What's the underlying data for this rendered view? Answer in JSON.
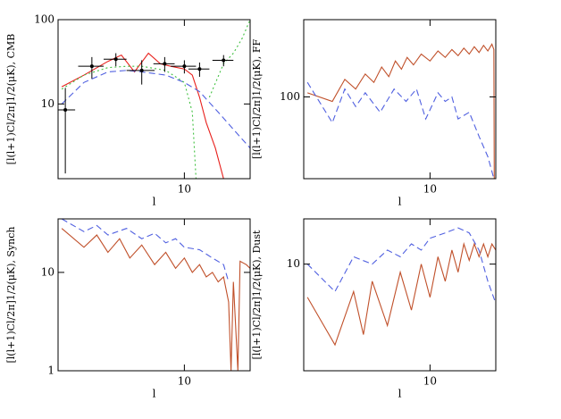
{
  "chart_data": [
    {
      "type": "line",
      "xlabel": "l",
      "ylabel": "[l(l+1)Cl/2π]1/2(μK), CMB",
      "xscale": "log",
      "yscale": "log",
      "xlim": [
        2.2,
        22
      ],
      "ylim": [
        1.3,
        100
      ],
      "xticks": [
        10
      ],
      "yticks": [
        10,
        100
      ],
      "series": [
        {
          "color": "#e8201c",
          "style": "solid",
          "x": [
            2.3,
            3,
            4,
            4.7,
            5.5,
            6.5,
            7.5,
            8.5,
            10,
            11,
            12,
            13,
            14.5,
            16
          ],
          "values": [
            16,
            22,
            32,
            38,
            24,
            40,
            30,
            28,
            26,
            22,
            12,
            6,
            3,
            1.3
          ]
        },
        {
          "color": "#5060e0",
          "style": "dashed",
          "x": [
            2.3,
            3,
            4,
            5,
            6,
            8,
            10,
            12,
            15,
            18,
            22
          ],
          "values": [
            10,
            18,
            24,
            25,
            24,
            22,
            18,
            14,
            8,
            5,
            3
          ]
        },
        {
          "color": "#40c040",
          "style": "dotted",
          "x": [
            2.3,
            3,
            4,
            5,
            6,
            8,
            10,
            11,
            11.5,
            12.5,
            13.5,
            16,
            18,
            20,
            22
          ],
          "values": [
            15,
            22,
            27,
            28,
            28,
            25,
            18,
            8,
            1.3,
            null,
            12,
            30,
            40,
            60,
            100
          ]
        }
      ],
      "points": {
        "color": "#000",
        "x": [
          2.4,
          3.3,
          4.4,
          6,
          7.9,
          10,
          12,
          16
        ],
        "values": [
          8.5,
          28,
          34,
          25,
          30,
          28,
          26,
          33
        ],
        "yerr": [
          7,
          8,
          6,
          8,
          6,
          5,
          5,
          5
        ],
        "xerr": [
          0.3,
          0.5,
          0.6,
          1,
          1,
          1.5,
          1.5,
          2
        ]
      }
    },
    {
      "type": "line",
      "xlabel": "l",
      "ylabel": "[l(l+1)Cl/2π]1/2(μK), FF",
      "xscale": "log",
      "yscale": "log",
      "xlim": [
        2.2,
        22
      ],
      "ylim": [
        15,
        600
      ],
      "xticks": [
        10
      ],
      "yticks": [
        100
      ],
      "series": [
        {
          "color": "#c0502a",
          "style": "solid",
          "x": [
            2.3,
            3.1,
            3.6,
            4.1,
            4.6,
            5.1,
            5.6,
            6.1,
            6.6,
            7.1,
            7.6,
            8.2,
            9,
            10,
            11,
            12,
            13,
            14,
            15,
            16,
            17,
            18,
            19,
            20,
            21,
            21.5,
            21.6
          ],
          "values": [
            110,
            90,
            150,
            120,
            170,
            140,
            200,
            160,
            230,
            190,
            250,
            210,
            270,
            230,
            290,
            250,
            300,
            260,
            310,
            270,
            320,
            280,
            330,
            290,
            340,
            300,
            15
          ]
        },
        {
          "color": "#5060e0",
          "style": "dashed",
          "x": [
            2.3,
            3.1,
            3.6,
            4.1,
            4.6,
            5.5,
            6.5,
            7.5,
            8.5,
            9.5,
            11,
            12,
            13,
            14,
            16,
            18,
            20,
            21.5
          ],
          "values": [
            140,
            55,
            120,
            80,
            110,
            70,
            120,
            90,
            120,
            60,
            110,
            90,
            100,
            60,
            70,
            40,
            25,
            15
          ]
        }
      ]
    },
    {
      "type": "line",
      "xlabel": "l",
      "ylabel": "[l(l+1)Cl/2π]1/2(μK), Synch",
      "xscale": "log",
      "yscale": "log",
      "xlim": [
        2.2,
        22
      ],
      "ylim": [
        1,
        35
      ],
      "xticks": [
        10
      ],
      "yticks": [
        1,
        10
      ],
      "series": [
        {
          "color": "#c0502a",
          "style": "solid",
          "x": [
            2.3,
            3,
            3.5,
            4,
            4.6,
            5.2,
            6,
            7,
            8,
            9,
            10,
            11,
            12,
            13,
            14,
            15,
            16,
            17,
            17.5,
            18,
            19,
            19.5,
            21,
            22
          ],
          "values": [
            28,
            18,
            24,
            16,
            22,
            14,
            19,
            12,
            16,
            11,
            14,
            10,
            12,
            9,
            10,
            8,
            9,
            5,
            1,
            8,
            1,
            13,
            12,
            11
          ]
        },
        {
          "color": "#5060e0",
          "style": "dashed",
          "x": [
            2.3,
            3,
            3.5,
            4,
            5,
            6,
            7,
            8,
            9,
            10,
            12,
            14,
            16,
            17
          ],
          "values": [
            35,
            26,
            30,
            24,
            28,
            22,
            25,
            20,
            22,
            18,
            17,
            14,
            12,
            8
          ]
        }
      ]
    },
    {
      "type": "line",
      "xlabel": "l",
      "ylabel": "[l(l+1)Cl/2π]1/2(μK), Dust",
      "xscale": "log",
      "yscale": "log",
      "xlim": [
        2.2,
        22
      ],
      "ylim": [
        2.5,
        18
      ],
      "xticks": [
        10
      ],
      "yticks": [
        10
      ],
      "series": [
        {
          "color": "#c0502a",
          "style": "solid",
          "x": [
            2.3,
            3.2,
            4,
            4.5,
            5,
            6,
            7,
            8,
            9,
            10,
            11,
            12,
            13,
            14,
            15,
            16,
            17,
            18,
            19,
            20,
            21,
            22
          ],
          "values": [
            6.5,
            3.5,
            7,
            4,
            8,
            4.5,
            9,
            5.5,
            10,
            6.5,
            11,
            8,
            12,
            9,
            13,
            10.5,
            13,
            11,
            13,
            11,
            13,
            12
          ]
        },
        {
          "color": "#5060e0",
          "style": "dashed",
          "x": [
            2.3,
            3.2,
            4,
            5,
            6,
            7,
            8,
            9,
            10,
            12,
            14,
            16,
            18,
            20,
            22
          ],
          "values": [
            10,
            7,
            11,
            10,
            12,
            11,
            13,
            12,
            14,
            15,
            16,
            15,
            12,
            8,
            6
          ]
        }
      ]
    }
  ]
}
